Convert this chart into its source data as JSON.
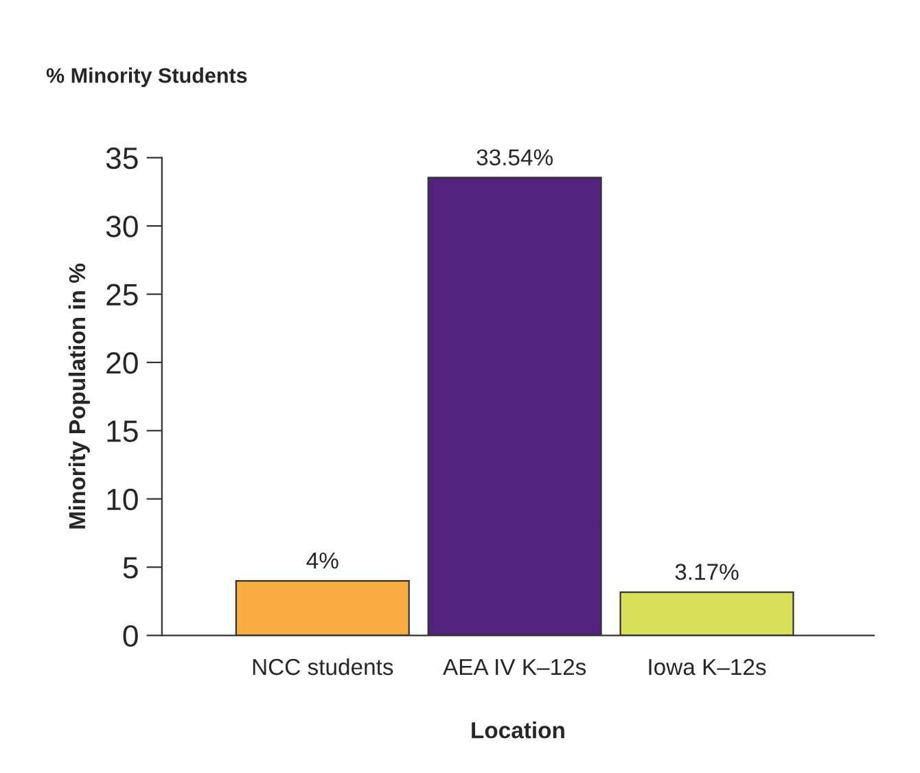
{
  "chart_data": {
    "type": "bar",
    "title": "% Minority Students",
    "xlabel": "Location",
    "ylabel": "Minority Population in %",
    "categories": [
      "NCC students",
      "AEA IV K–12s",
      "Iowa K–12s"
    ],
    "values": [
      4,
      33.54,
      3.17
    ],
    "colors": [
      "#f9ad40",
      "#52237a",
      "#d8e05a"
    ],
    "value_labels": [
      "4%",
      "33.54%",
      "3.17%"
    ],
    "ylim": [
      0,
      35
    ],
    "yticks": [
      0,
      5,
      10,
      15,
      20,
      25,
      30,
      35
    ],
    "grid": false,
    "legend": false
  }
}
